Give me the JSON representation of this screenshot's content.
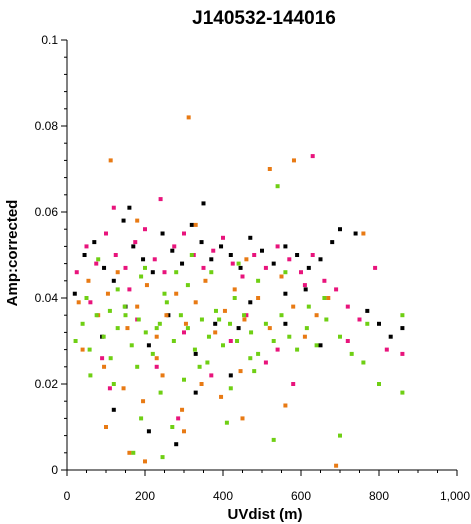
{
  "chart_data": {
    "type": "scatter",
    "title": "J140532-144016",
    "xlabel": "UVdist (m)",
    "ylabel": "Amp:corrected",
    "xlim": [
      0,
      1000
    ],
    "ylim": [
      0,
      0.1
    ],
    "x_ticks": [
      0,
      200,
      400,
      600,
      800,
      1000
    ],
    "x_tick_labels": [
      "0",
      "200",
      "400",
      "600",
      "800",
      "1,000"
    ],
    "y_ticks": [
      0,
      0.02,
      0.04,
      0.06,
      0.08,
      0.1
    ],
    "y_tick_labels": [
      "0",
      "0.02",
      "0.04",
      "0.06",
      "0.08",
      "0.1"
    ],
    "grid": false,
    "legend": "none",
    "series": [
      {
        "color": "#000000",
        "points": [
          [
            20,
            0.041
          ],
          [
            45,
            0.05
          ],
          [
            70,
            0.053
          ],
          [
            95,
            0.047
          ],
          [
            120,
            0.044
          ],
          [
            145,
            0.058
          ],
          [
            170,
            0.052
          ],
          [
            195,
            0.049
          ],
          [
            220,
            0.046
          ],
          [
            245,
            0.055
          ],
          [
            270,
            0.051
          ],
          [
            295,
            0.048
          ],
          [
            320,
            0.057
          ],
          [
            345,
            0.053
          ],
          [
            370,
            0.049
          ],
          [
            395,
            0.052
          ],
          [
            420,
            0.05
          ],
          [
            445,
            0.047
          ],
          [
            470,
            0.054
          ],
          [
            500,
            0.051
          ],
          [
            530,
            0.048
          ],
          [
            560,
            0.052
          ],
          [
            590,
            0.05
          ],
          [
            620,
            0.047
          ],
          [
            650,
            0.049
          ],
          [
            680,
            0.053
          ],
          [
            700,
            0.056
          ],
          [
            740,
            0.055
          ],
          [
            770,
            0.037
          ],
          [
            800,
            0.034
          ],
          [
            830,
            0.031
          ],
          [
            860,
            0.033
          ],
          [
            150,
            0.038
          ],
          [
            260,
            0.036
          ],
          [
            380,
            0.034
          ],
          [
            470,
            0.039
          ],
          [
            560,
            0.041
          ],
          [
            90,
            0.031
          ],
          [
            210,
            0.029
          ],
          [
            330,
            0.027
          ],
          [
            440,
            0.033
          ],
          [
            120,
            0.014
          ],
          [
            210,
            0.009
          ],
          [
            280,
            0.006
          ],
          [
            160,
            0.061
          ],
          [
            350,
            0.062
          ],
          [
            560,
            0.034
          ],
          [
            612,
            0.042
          ],
          [
            650,
            0.029
          ],
          [
            330,
            0.018
          ],
          [
            420,
            0.022
          ]
        ]
      },
      {
        "color": "#e8147c",
        "points": [
          [
            25,
            0.046
          ],
          [
            50,
            0.052
          ],
          [
            75,
            0.048
          ],
          [
            100,
            0.055
          ],
          [
            125,
            0.05
          ],
          [
            150,
            0.047
          ],
          [
            175,
            0.053
          ],
          [
            200,
            0.056
          ],
          [
            225,
            0.049
          ],
          [
            250,
            0.046
          ],
          [
            275,
            0.052
          ],
          [
            300,
            0.055
          ],
          [
            325,
            0.05
          ],
          [
            350,
            0.047
          ],
          [
            375,
            0.051
          ],
          [
            400,
            0.054
          ],
          [
            425,
            0.048
          ],
          [
            450,
            0.045
          ],
          [
            480,
            0.05
          ],
          [
            510,
            0.047
          ],
          [
            540,
            0.052
          ],
          [
            570,
            0.049
          ],
          [
            600,
            0.046
          ],
          [
            630,
            0.05
          ],
          [
            660,
            0.044
          ],
          [
            690,
            0.042
          ],
          [
            720,
            0.038
          ],
          [
            750,
            0.035
          ],
          [
            790,
            0.047
          ],
          [
            820,
            0.028
          ],
          [
            860,
            0.027
          ],
          [
            240,
            0.063
          ],
          [
            120,
            0.061
          ],
          [
            60,
            0.039
          ],
          [
            180,
            0.035
          ],
          [
            300,
            0.032
          ],
          [
            420,
            0.03
          ],
          [
            540,
            0.028
          ],
          [
            90,
            0.026
          ],
          [
            230,
            0.024
          ],
          [
            370,
            0.022
          ],
          [
            510,
            0.025
          ],
          [
            630,
            0.073
          ],
          [
            285,
            0.012
          ],
          [
            110,
            0.019
          ],
          [
            720,
            0.03
          ],
          [
            460,
            0.036
          ],
          [
            580,
            0.02
          ],
          [
            610,
            0.043
          ],
          [
            160,
            0.042
          ]
        ]
      },
      {
        "color": "#e87a14",
        "points": [
          [
            30,
            0.039
          ],
          [
            55,
            0.044
          ],
          [
            80,
            0.036
          ],
          [
            105,
            0.041
          ],
          [
            130,
            0.046
          ],
          [
            155,
            0.033
          ],
          [
            180,
            0.038
          ],
          [
            205,
            0.043
          ],
          [
            230,
            0.031
          ],
          [
            255,
            0.036
          ],
          [
            280,
            0.041
          ],
          [
            305,
            0.034
          ],
          [
            330,
            0.039
          ],
          [
            355,
            0.044
          ],
          [
            380,
            0.032
          ],
          [
            405,
            0.037
          ],
          [
            430,
            0.042
          ],
          [
            455,
            0.035
          ],
          [
            490,
            0.04
          ],
          [
            520,
            0.033
          ],
          [
            550,
            0.045
          ],
          [
            580,
            0.038
          ],
          [
            610,
            0.031
          ],
          [
            640,
            0.036
          ],
          [
            670,
            0.04
          ],
          [
            95,
            0.024
          ],
          [
            145,
            0.019
          ],
          [
            195,
            0.016
          ],
          [
            245,
            0.022
          ],
          [
            295,
            0.014
          ],
          [
            345,
            0.02
          ],
          [
            395,
            0.017
          ],
          [
            445,
            0.023
          ],
          [
            112,
            0.072
          ],
          [
            312,
            0.082
          ],
          [
            582,
            0.072
          ],
          [
            520,
            0.07
          ],
          [
            160,
            0.004
          ],
          [
            200,
            0.002
          ],
          [
            690,
            0.001
          ],
          [
            760,
            0.055
          ],
          [
            100,
            0.01
          ],
          [
            300,
            0.009
          ],
          [
            450,
            0.012
          ],
          [
            560,
            0.015
          ],
          [
            40,
            0.028
          ],
          [
            180,
            0.058
          ],
          [
            330,
            0.057
          ],
          [
            460,
            0.049
          ],
          [
            230,
            0.026
          ]
        ]
      },
      {
        "color": "#6fcf14",
        "points": [
          [
            22,
            0.03
          ],
          [
            40,
            0.034
          ],
          [
            58,
            0.028
          ],
          [
            76,
            0.036
          ],
          [
            94,
            0.031
          ],
          [
            112,
            0.026
          ],
          [
            130,
            0.033
          ],
          [
            148,
            0.038
          ],
          [
            166,
            0.029
          ],
          [
            184,
            0.035
          ],
          [
            202,
            0.032
          ],
          [
            220,
            0.027
          ],
          [
            238,
            0.034
          ],
          [
            256,
            0.039
          ],
          [
            274,
            0.03
          ],
          [
            292,
            0.036
          ],
          [
            310,
            0.033
          ],
          [
            328,
            0.028
          ],
          [
            346,
            0.035
          ],
          [
            364,
            0.031
          ],
          [
            382,
            0.037
          ],
          [
            400,
            0.029
          ],
          [
            418,
            0.034
          ],
          [
            436,
            0.03
          ],
          [
            454,
            0.036
          ],
          [
            472,
            0.032
          ],
          [
            490,
            0.027
          ],
          [
            510,
            0.034
          ],
          [
            530,
            0.03
          ],
          [
            550,
            0.036
          ],
          [
            570,
            0.031
          ],
          [
            590,
            0.028
          ],
          [
            615,
            0.033
          ],
          [
            640,
            0.029
          ],
          [
            665,
            0.035
          ],
          [
            700,
            0.031
          ],
          [
            730,
            0.027
          ],
          [
            770,
            0.034
          ],
          [
            800,
            0.02
          ],
          [
            860,
            0.036
          ],
          [
            60,
            0.022
          ],
          [
            120,
            0.02
          ],
          [
            180,
            0.024
          ],
          [
            240,
            0.018
          ],
          [
            300,
            0.021
          ],
          [
            360,
            0.025
          ],
          [
            420,
            0.019
          ],
          [
            480,
            0.023
          ],
          [
            130,
            0.042
          ],
          [
            190,
            0.045
          ],
          [
            250,
            0.041
          ],
          [
            310,
            0.043
          ],
          [
            370,
            0.046
          ],
          [
            430,
            0.04
          ],
          [
            490,
            0.044
          ],
          [
            80,
            0.049
          ],
          [
            200,
            0.047
          ],
          [
            320,
            0.05
          ],
          [
            440,
            0.048
          ],
          [
            560,
            0.046
          ],
          [
            190,
            0.012
          ],
          [
            270,
            0.01
          ],
          [
            410,
            0.011
          ],
          [
            530,
            0.007
          ],
          [
            170,
            0.004
          ],
          [
            245,
            0.003
          ],
          [
            700,
            0.008
          ],
          [
            540,
            0.066
          ],
          [
            660,
            0.04
          ],
          [
            760,
            0.025
          ],
          [
            860,
            0.018
          ],
          [
            150,
            0.036
          ],
          [
            230,
            0.033
          ],
          [
            390,
            0.035
          ],
          [
            470,
            0.026
          ],
          [
            620,
            0.038
          ],
          [
            50,
            0.04
          ],
          [
            110,
            0.037
          ],
          [
            340,
            0.024
          ],
          [
            280,
            0.046
          ]
        ]
      }
    ]
  }
}
